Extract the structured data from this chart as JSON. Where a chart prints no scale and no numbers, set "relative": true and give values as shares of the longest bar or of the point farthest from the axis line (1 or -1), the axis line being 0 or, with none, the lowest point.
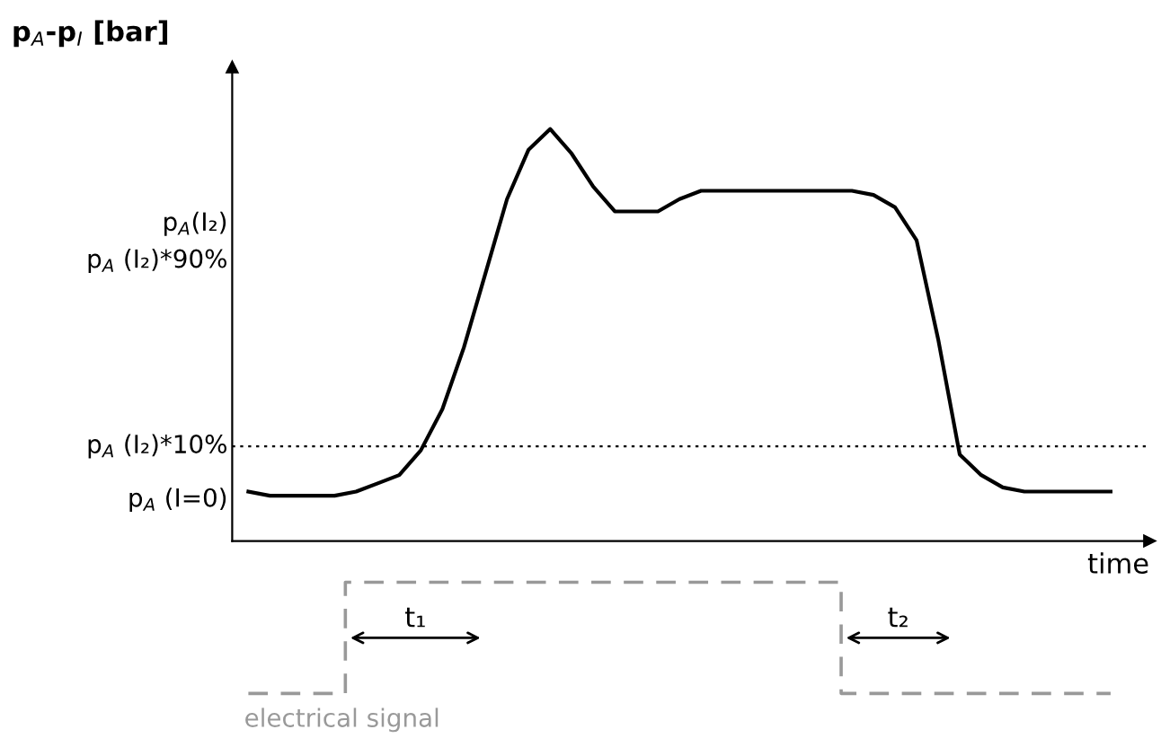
{
  "chart_data": {
    "type": "line",
    "relative": true,
    "ylabel": "p$_{A}$-p$_{I}$ [bar]",
    "xlabel": "time",
    "categories": [
      null,
      null,
      null,
      null,
      null,
      null,
      null,
      null,
      null,
      null,
      null,
      null,
      null,
      null,
      null,
      null,
      null,
      null,
      null,
      null,
      null,
      null,
      null,
      null,
      null,
      null,
      null,
      null,
      null,
      null,
      null,
      null,
      null,
      null,
      null,
      null,
      null,
      null,
      null,
      null,
      null
    ],
    "series": [
      {
        "color": "#000000",
        "values": [
          0.12,
          0.11,
          0.11,
          0.11,
          0.11,
          0.12,
          0.14,
          0.16,
          0.22,
          0.32,
          0.47,
          0.65,
          0.83,
          0.95,
          1.0,
          0.94,
          0.86,
          0.8,
          0.8,
          0.8,
          0.83,
          0.85,
          0.85,
          0.85,
          0.85,
          0.85,
          0.85,
          0.85,
          0.85,
          0.84,
          0.81,
          0.73,
          0.49,
          0.21,
          0.16,
          0.13,
          0.12,
          0.12,
          0.12,
          0.12,
          0.12
        ]
      },
      {
        "name": "electrical signal",
        "type": "step",
        "line_style": "dashed",
        "color": "#999999",
        "values": [
          -0.37,
          -0.37,
          -0.37,
          -0.37,
          -0.37,
          -0.1,
          -0.1,
          -0.1,
          -0.1,
          -0.1,
          -0.1,
          -0.1,
          -0.1,
          -0.1,
          -0.1,
          -0.1,
          -0.1,
          -0.1,
          -0.1,
          -0.1,
          -0.1,
          -0.1,
          -0.1,
          -0.1,
          -0.1,
          -0.1,
          -0.1,
          -0.1,
          -0.37,
          -0.37,
          -0.37,
          -0.37,
          -0.37,
          -0.37,
          -0.37,
          -0.37,
          -0.37,
          -0.37,
          -0.37,
          -0.37,
          -0.37
        ]
      }
    ],
    "ref_lines": [
      {
        "axis": "y",
        "value": 0.23,
        "label": "p$_{A}$ (I₂)*10%",
        "color": "#000000",
        "line_style": "dotted"
      }
    ],
    "annotations": [
      "p$_{A}$(I₂)",
      "p$_{A}$ (I₂)*90%",
      "p$_{A}$ (I=0)",
      "t₁",
      "t₂"
    ]
  }
}
